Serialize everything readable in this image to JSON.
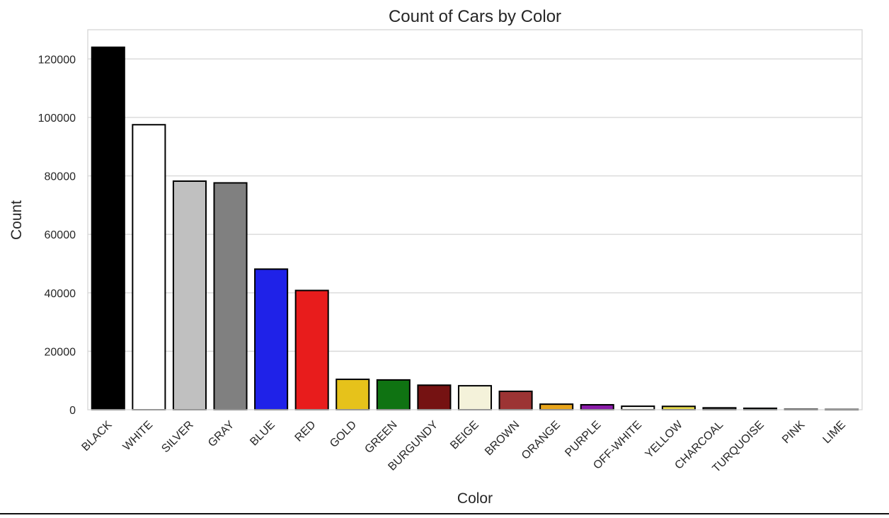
{
  "chart_data": {
    "type": "bar",
    "title": "Count of Cars by Color",
    "xlabel": "Color",
    "ylabel": "Count",
    "ylim": [
      0,
      130000
    ],
    "yticks": [
      0,
      20000,
      40000,
      60000,
      80000,
      100000,
      120000
    ],
    "grid": true,
    "categories": [
      "BLACK",
      "WHITE",
      "SILVER",
      "GRAY",
      "BLUE",
      "RED",
      "GOLD",
      "GREEN",
      "BURGUNDY",
      "BEIGE",
      "BROWN",
      "ORANGE",
      "PURPLE",
      "OFF-WHITE",
      "YELLOW",
      "CHARCOAL",
      "TURQUOISE",
      "PINK",
      "LIME"
    ],
    "values": [
      124000,
      97500,
      78200,
      77600,
      48100,
      40800,
      10400,
      10200,
      8400,
      8200,
      6300,
      1900,
      1700,
      1200,
      1150,
      650,
      500,
      150,
      100
    ],
    "colors": [
      "#000000",
      "#ffffff",
      "#c0c0c0",
      "#808080",
      "#1f22e8",
      "#e81c1c",
      "#e6c21b",
      "#0f7312",
      "#751212",
      "#f4f2da",
      "#9c3434",
      "#e8a51c",
      "#8a1ca8",
      "#f5f5f0",
      "#e6db4c",
      "#414141",
      "#40e0d0",
      "#ffc0cb",
      "#00ff00"
    ]
  }
}
